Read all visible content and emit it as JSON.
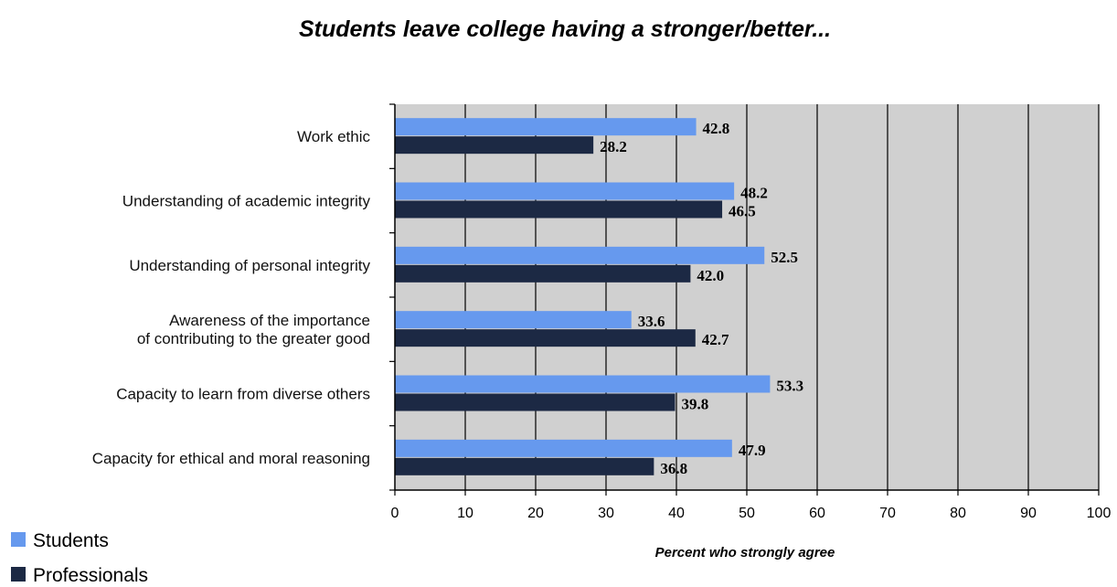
{
  "chart_data": {
    "type": "bar",
    "orientation": "horizontal",
    "title": "Students leave college having a stronger/better...",
    "xlabel": "Percent who strongly agree",
    "ylabel": "",
    "xlim": [
      0,
      100
    ],
    "x_ticks": [
      "0",
      "10",
      "20",
      "30",
      "40",
      "50",
      "60",
      "70",
      "80",
      "90",
      "100"
    ],
    "grid": "vertical",
    "legend_position": "bottom-left",
    "categories": [
      [
        "Work ethic"
      ],
      [
        "Understanding of academic integrity"
      ],
      [
        "Understanding of personal integrity"
      ],
      [
        "Awareness of the importance",
        "of contributing to the greater good"
      ],
      [
        "Capacity to learn from diverse others"
      ],
      [
        "Capacity for ethical and moral reasoning"
      ]
    ],
    "series": [
      {
        "name": "Students",
        "color": "#6699ee",
        "values": [
          42.8,
          48.2,
          52.5,
          33.6,
          53.3,
          47.9
        ],
        "labels": [
          "42.8",
          "48.2",
          "52.5",
          "33.6",
          "53.3",
          "47.9"
        ]
      },
      {
        "name": "Professionals",
        "color": "#1c2944",
        "values": [
          28.2,
          46.5,
          42.0,
          42.7,
          39.8,
          36.8
        ],
        "labels": [
          "28.2",
          "46.5",
          "42.0",
          "42.7",
          "39.8",
          "36.8"
        ]
      }
    ],
    "plot_background": "#d0d0d0"
  }
}
